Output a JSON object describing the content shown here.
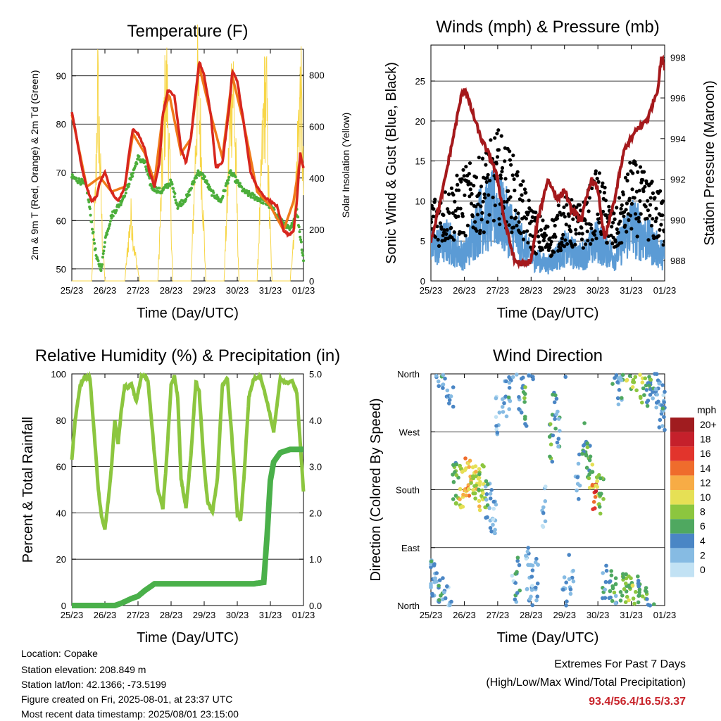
{
  "x_tick_labels": [
    "25/23",
    "26/23",
    "27/23",
    "28/23",
    "29/23",
    "30/23",
    "31/23",
    "01/23"
  ],
  "x_axis_label": "Time (Day/UTC)",
  "colors": {
    "temp_2m": "#d7261e",
    "temp_9m": "#f07a1a",
    "dewpoint": "#4bae3a",
    "insolation": "#f7d648",
    "wind": "#5b9bd5",
    "gust": "#000000",
    "pressure": "#a5191c",
    "rh": "#8cc63f",
    "precip": "#4ab04a",
    "extremes": "#c8242b"
  },
  "chart_data": [
    {
      "id": "temperature",
      "type": "line",
      "title": "Temperature (F)",
      "xlabel": "Time (Day/UTC)",
      "ylabel": "2m & 9m T (Red, Orange) & 2m Td (Green)",
      "y2label": "Solar Insolation (Yellow)",
      "ylim": [
        47.5,
        95.5
      ],
      "yticks": [
        50,
        60,
        70,
        80,
        90
      ],
      "y2lim": [
        0,
        900
      ],
      "y2ticks": [
        0,
        200,
        400,
        600,
        800
      ],
      "x_days": [
        0,
        7
      ],
      "series": [
        {
          "name": "2m T",
          "color": "#d7261e",
          "axis": "y",
          "x": [
            0,
            0.1,
            0.2,
            0.3,
            0.45,
            0.6,
            0.75,
            0.85,
            1.0,
            1.2,
            1.4,
            1.6,
            1.75,
            1.85,
            2.0,
            2.2,
            2.35,
            2.5,
            2.65,
            2.75,
            2.9,
            3.1,
            3.3,
            3.45,
            3.6,
            3.75,
            3.85,
            4.0,
            4.2,
            4.35,
            4.55,
            4.75,
            4.85,
            5.0,
            5.2,
            5.4,
            5.6,
            5.8,
            6.0,
            6.2,
            6.4,
            6.55,
            6.7,
            6.8,
            6.9,
            7.0
          ],
          "y": [
            82.5,
            79,
            75,
            71,
            67,
            64,
            65,
            68,
            70,
            66,
            64,
            67,
            75,
            79,
            78,
            75,
            70,
            67,
            72,
            82,
            87,
            86,
            75,
            72,
            77,
            87,
            93,
            90,
            82,
            71,
            72,
            83,
            91,
            89,
            80,
            70,
            67,
            65,
            64,
            63,
            58,
            57,
            58,
            64,
            74,
            71
          ]
        },
        {
          "name": "9m T",
          "color": "#f07a1a",
          "axis": "y",
          "x": [
            0,
            0.45,
            0.85,
            1.2,
            1.6,
            1.85,
            2.2,
            2.5,
            2.75,
            2.95,
            3.3,
            3.6,
            3.85,
            4.2,
            4.55,
            4.85,
            5.2,
            5.6,
            6.0,
            6.4,
            6.7,
            6.9,
            7.0
          ],
          "y": [
            82,
            67,
            69,
            66,
            67,
            78,
            74,
            68,
            82,
            86,
            74,
            77,
            92,
            82,
            73,
            90,
            80,
            66,
            63,
            58,
            64,
            73,
            71
          ]
        },
        {
          "name": "2m Td",
          "color": "#4bae3a",
          "axis": "y",
          "x": [
            0,
            0.15,
            0.3,
            0.45,
            0.55,
            0.65,
            0.75,
            0.9,
            1.0,
            1.2,
            1.5,
            1.8,
            2.0,
            2.2,
            2.4,
            2.7,
            3.0,
            3.2,
            3.5,
            3.8,
            4.0,
            4.2,
            4.5,
            4.8,
            5.0,
            5.2,
            5.5,
            5.8,
            6.0,
            6.3,
            6.6,
            6.8,
            6.9,
            7.0
          ],
          "y": [
            69,
            68.5,
            68,
            67,
            62,
            57,
            52,
            50,
            56,
            61,
            64,
            69,
            73,
            72,
            67,
            66,
            68,
            63,
            65,
            70,
            69,
            66,
            64,
            70,
            68,
            66,
            65,
            64,
            63,
            60,
            58,
            62,
            57,
            52
          ]
        },
        {
          "name": "Solar Insolation",
          "color": "#f7d648",
          "axis": "y2",
          "x": [
            0,
            0.6,
            0.72,
            0.78,
            0.84,
            0.92,
            1.0,
            1.6,
            1.72,
            1.8,
            1.88,
            1.96,
            2.05,
            2.6,
            2.72,
            2.8,
            2.88,
            2.96,
            3.05,
            3.6,
            3.72,
            3.8,
            3.88,
            3.96,
            4.05,
            4.6,
            4.72,
            4.8,
            4.88,
            4.96,
            5.05,
            5.6,
            5.72,
            5.8,
            5.88,
            5.96,
            6.05,
            6.6,
            6.72,
            6.8,
            6.86,
            6.92,
            7.0
          ],
          "y": [
            0,
            0,
            400,
            880,
            600,
            200,
            0,
            0,
            200,
            300,
            150,
            80,
            0,
            0,
            450,
            780,
            860,
            500,
            0,
            0,
            500,
            880,
            700,
            350,
            0,
            0,
            450,
            820,
            880,
            500,
            0,
            0,
            450,
            780,
            840,
            350,
            0,
            0,
            250,
            520,
            760,
            850,
            420
          ]
        }
      ]
    },
    {
      "id": "winds",
      "type": "scatter",
      "title": "Winds (mph) & Pressure (mb)",
      "xlabel": "Time (Day/UTC)",
      "ylabel": "Sonic Wind & Gust (Blue, Black)",
      "y2label": "Station Pressure (Maroon)",
      "ylim": [
        0,
        29.5
      ],
      "yticks": [
        0,
        5,
        10,
        15,
        20,
        25
      ],
      "y2lim": [
        987,
        998.6
      ],
      "y2ticks": [
        988,
        990,
        992,
        994,
        996,
        998
      ],
      "x_days": [
        0,
        7
      ],
      "series": [
        {
          "name": "Sonic Wind",
          "color": "#5b9bd5",
          "x": [
            0,
            0.5,
            1.0,
            1.5,
            2.0,
            2.5,
            3.0,
            3.5,
            4.0,
            4.5,
            5.0,
            5.5,
            6.0,
            6.5,
            7.0
          ],
          "y": [
            4,
            5,
            3,
            8,
            9,
            6,
            3,
            2,
            4,
            3,
            5,
            3,
            7,
            5,
            3
          ]
        },
        {
          "name": "Gust",
          "color": "#000000",
          "x": [
            0,
            0.5,
            1.0,
            1.5,
            2.0,
            2.5,
            3.0,
            3.5,
            4.0,
            4.5,
            5.0,
            5.5,
            6.0,
            6.5,
            7.0
          ],
          "y": [
            9,
            10,
            12,
            13,
            16,
            13,
            8,
            6,
            9,
            8,
            12,
            7,
            13,
            11,
            9
          ]
        },
        {
          "name": "Station Pressure",
          "color": "#a5191c",
          "axis": "y2",
          "x": [
            0,
            0.3,
            0.6,
            0.9,
            1.0,
            1.2,
            1.5,
            1.8,
            2.0,
            2.2,
            2.5,
            2.8,
            3.0,
            3.2,
            3.5,
            3.8,
            4.0,
            4.2,
            4.5,
            4.8,
            5.0,
            5.2,
            5.5,
            5.8,
            6.0,
            6.2,
            6.5,
            6.8,
            6.9,
            7.0
          ],
          "y": [
            989,
            991,
            993.5,
            996,
            996.5,
            995.5,
            994,
            993,
            992,
            990,
            988,
            987.8,
            988,
            990,
            992,
            991,
            991.5,
            990.5,
            990,
            992,
            991.5,
            989,
            991,
            993.5,
            994,
            994.5,
            995,
            996.5,
            998,
            997.5
          ]
        }
      ]
    },
    {
      "id": "humidity",
      "type": "line",
      "title": "Relative Humidity (%) & Precipitation (in)",
      "xlabel": "Time (Day/UTC)",
      "ylabel": "Percent & Total Rainfall",
      "ylim": [
        0,
        100
      ],
      "yticks": [
        0,
        20,
        40,
        60,
        80,
        100
      ],
      "y2lim": [
        0,
        5.0
      ],
      "y2ticks": [
        "0.0",
        "1.0",
        "2.0",
        "3.0",
        "4.0",
        "5.0"
      ],
      "x_days": [
        0,
        7
      ],
      "series": [
        {
          "name": "Relative Humidity",
          "color": "#8cc63f",
          "x": [
            0,
            0.1,
            0.25,
            0.4,
            0.55,
            0.7,
            0.8,
            0.9,
            1.0,
            1.1,
            1.2,
            1.3,
            1.4,
            1.5,
            1.6,
            1.7,
            1.8,
            1.95,
            2.1,
            2.2,
            2.3,
            2.5,
            2.6,
            2.75,
            2.85,
            3.0,
            3.1,
            3.2,
            3.3,
            3.45,
            3.6,
            3.75,
            3.85,
            4.0,
            4.1,
            4.25,
            4.4,
            4.55,
            4.7,
            4.85,
            5.0,
            5.1,
            5.2,
            5.35,
            5.5,
            5.7,
            5.9,
            6.1,
            6.3,
            6.5,
            6.65,
            6.8,
            6.95,
            7.0
          ],
          "y": [
            63,
            80,
            95,
            99,
            98,
            70,
            50,
            38,
            33,
            45,
            60,
            80,
            70,
            85,
            95,
            94,
            96,
            88,
            99,
            99,
            97,
            65,
            50,
            42,
            60,
            95,
            99,
            90,
            55,
            42,
            65,
            97,
            92,
            60,
            45,
            40,
            55,
            95,
            98,
            70,
            40,
            37,
            55,
            90,
            98,
            99,
            88,
            75,
            98,
            96,
            97,
            92,
            60,
            49
          ]
        },
        {
          "name": "Total Precipitation",
          "color": "#4ab04a",
          "x": [
            0,
            0.5,
            1.0,
            1.3,
            1.5,
            1.8,
            2.0,
            2.2,
            2.5,
            3.0,
            4.0,
            5.0,
            5.5,
            5.8,
            5.9,
            6.0,
            6.1,
            6.3,
            6.6,
            7.0
          ],
          "y": [
            0,
            0,
            0,
            0,
            0.05,
            0.15,
            0.2,
            0.32,
            0.47,
            0.47,
            0.47,
            0.47,
            0.47,
            0.5,
            1.5,
            2.7,
            3.1,
            3.3,
            3.37,
            3.37
          ]
        }
      ]
    },
    {
      "id": "direction",
      "type": "scatter",
      "title": "Wind Direction",
      "xlabel": "Time (Day/UTC)",
      "ylabel": "Direction (Colored By Speed)",
      "yticks": [
        "North",
        "East",
        "South",
        "West",
        "North"
      ],
      "x_days": [
        0,
        7
      ],
      "legend": {
        "unit": "mph",
        "labels": [
          "20+",
          "18",
          "16",
          "14",
          "12",
          "10",
          "8",
          "6",
          "4",
          "2",
          "0"
        ],
        "colors": [
          "#a01c1f",
          "#c5202b",
          "#e2342c",
          "#ef6c2c",
          "#f7ac45",
          "#e6e055",
          "#8cc63f",
          "#4fa860",
          "#4a86c5",
          "#86bbe3",
          "#c2e2f4"
        ]
      },
      "points_by_day": [
        {
          "x": [
            0.0,
            0.1,
            0.2,
            0.3,
            0.4,
            0.5,
            0.6,
            0.7,
            0.8,
            0.9
          ],
          "dir": [
            40,
            30,
            20,
            10,
            350,
            355,
            340,
            200,
            190,
            180
          ],
          "speed": [
            4,
            3,
            2,
            5,
            3,
            2,
            3,
            6,
            8,
            10
          ]
        },
        {
          "x": [
            1.0,
            1.1,
            1.2,
            1.3,
            1.4,
            1.5,
            1.6,
            1.7,
            1.8,
            1.9
          ],
          "dir": [
            185,
            200,
            195,
            190,
            180,
            175,
            185,
            160,
            150,
            140
          ],
          "speed": [
            11,
            12,
            10,
            9,
            10,
            8,
            9,
            4,
            3,
            2
          ]
        },
        {
          "x": [
            2.0,
            2.2,
            2.4,
            2.5,
            2.6,
            2.7,
            2.8,
            2.9,
            3.0
          ],
          "dir": [
            300,
            320,
            340,
            20,
            40,
            330,
            310,
            60,
            30
          ],
          "speed": [
            2,
            3,
            4,
            2,
            5,
            3,
            6,
            2,
            3
          ]
        },
        {
          "x": [
            3.0,
            3.2,
            3.4,
            3.6,
            3.7,
            3.8,
            4.0,
            4.2,
            4.4,
            4.6
          ],
          "dir": [
            20,
            40,
            150,
            250,
            300,
            270,
            30,
            50,
            200,
            260
          ],
          "speed": [
            2,
            3,
            2,
            6,
            5,
            4,
            3,
            2,
            3,
            5
          ]
        },
        {
          "x": [
            4.7,
            4.8,
            4.9,
            5.0,
            5.1,
            5.2,
            5.4,
            5.5,
            5.6,
            5.7
          ],
          "dir": [
            230,
            200,
            180,
            190,
            170,
            40,
            20,
            10,
            340,
            350
          ],
          "speed": [
            6,
            8,
            16,
            9,
            7,
            4,
            5,
            6,
            3,
            4
          ]
        },
        {
          "x": [
            5.8,
            5.9,
            6.0,
            6.1,
            6.2,
            6.3,
            6.4,
            6.5,
            6.6,
            6.7,
            6.8,
            6.9,
            7.0
          ],
          "dir": [
            30,
            20,
            10,
            5,
            15,
            350,
            355,
            345,
            340,
            330,
            320,
            310,
            300
          ],
          "speed": [
            6,
            8,
            7,
            9,
            6,
            8,
            7,
            5,
            6,
            4,
            3,
            2,
            4
          ]
        }
      ]
    }
  ],
  "info": {
    "location": "Location: Copake",
    "elevation": "Station elevation: 208.849 m",
    "latlon": "Station lat/lon: 42.1366; -73.5199",
    "created": "Figure created on Fri, 2025-08-01, at 23:37 UTC",
    "timestamp": "Most recent data timestamp: 2025/08/01 23:15:00"
  },
  "extremes": {
    "line1": "Extremes For Past 7 Days",
    "line2": "(High/Low/Max Wind/Total Precipitation)",
    "value": "93.4/56.4/16.5/3.37"
  }
}
